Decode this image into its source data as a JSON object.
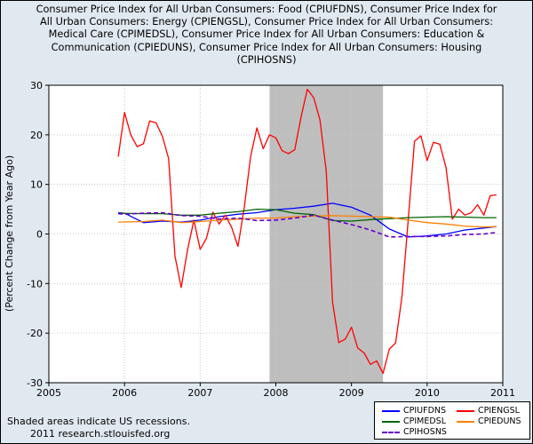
{
  "chart_data": {
    "type": "line",
    "title": "Consumer Price Index for All Urban Consumers: Food (CPIUFDNS), Consumer Price Index for All Urban Consumers: Energy (CPIENGSL), Consumer Price Index for All Urban Consumers: Medical Care (CPIMEDSL), Consumer Price Index for All Urban Consumers: Education & Communication (CPIEDUNS), Consumer Price Index for All Urban Consumers: Housing (CPIHOSNS)",
    "ylabel": "(Percent Change from Year Ago)",
    "xlim": [
      2005,
      2011
    ],
    "ylim": [
      -30,
      30
    ],
    "x_ticks": [
      "2005",
      "2006",
      "2007",
      "2008",
      "2009",
      "2010",
      "2011"
    ],
    "y_ticks": [
      "30",
      "20",
      "10",
      "0",
      "-10",
      "-20",
      "-30"
    ],
    "grid": true,
    "legend_position": "bottom-right",
    "recession": {
      "start": 2007.917,
      "end": 2009.417,
      "color": "#bebebe"
    },
    "series": [
      {
        "name": "CPIUFDNS",
        "color": "#0000ff",
        "style": "solid",
        "x": [
          2005.917,
          2006.0,
          2006.25,
          2006.5,
          2006.75,
          2007.0,
          2007.25,
          2007.5,
          2007.75,
          2008.0,
          2008.25,
          2008.5,
          2008.75,
          2009.0,
          2009.25,
          2009.5,
          2009.75,
          2010.0,
          2010.25,
          2010.5,
          2010.75,
          2010.917
        ],
        "values": [
          4.3,
          4.2,
          2.3,
          2.6,
          2.4,
          2.8,
          3.5,
          4.0,
          4.3,
          4.9,
          5.2,
          5.6,
          6.2,
          5.4,
          3.8,
          1.0,
          -0.6,
          -0.4,
          0.0,
          0.8,
          1.2,
          1.5
        ]
      },
      {
        "name": "CPIENGSL",
        "color": "#ff0000",
        "style": "solid",
        "x": [
          2005.917,
          2006.0,
          2006.083,
          2006.167,
          2006.25,
          2006.333,
          2006.417,
          2006.5,
          2006.583,
          2006.667,
          2006.75,
          2006.833,
          2006.917,
          2007.0,
          2007.083,
          2007.167,
          2007.25,
          2007.333,
          2007.417,
          2007.5,
          2007.583,
          2007.667,
          2007.75,
          2007.833,
          2007.917,
          2008.0,
          2008.083,
          2008.167,
          2008.25,
          2008.333,
          2008.417,
          2008.5,
          2008.583,
          2008.667,
          2008.75,
          2008.833,
          2008.917,
          2009.0,
          2009.083,
          2009.167,
          2009.25,
          2009.333,
          2009.417,
          2009.5,
          2009.583,
          2009.667,
          2009.75,
          2009.833,
          2009.917,
          2010.0,
          2010.083,
          2010.167,
          2010.25,
          2010.333,
          2010.417,
          2010.5,
          2010.583,
          2010.667,
          2010.75,
          2010.833,
          2010.917
        ],
        "values": [
          15.6,
          24.5,
          20.0,
          17.6,
          18.2,
          22.8,
          22.4,
          19.7,
          15.2,
          -4.5,
          -10.8,
          -3.2,
          2.8,
          -3.1,
          -0.9,
          4.4,
          2.0,
          3.8,
          1.3,
          -2.5,
          5.4,
          15.6,
          21.4,
          17.2,
          20.0,
          19.4,
          16.8,
          16.2,
          17.0,
          23.6,
          29.2,
          27.5,
          23.0,
          12.6,
          -13.8,
          -21.9,
          -21.2,
          -18.8,
          -23.0,
          -24.0,
          -26.3,
          -25.6,
          -28.1,
          -23.2,
          -22.0,
          -12.6,
          2.8,
          18.7,
          19.8,
          14.8,
          18.5,
          18.1,
          13.4,
          3.0,
          5.0,
          3.8,
          4.3,
          5.9,
          3.8,
          7.7,
          7.9
        ]
      },
      {
        "name": "CPIMEDSL",
        "color": "#006400",
        "style": "solid",
        "x": [
          2005.917,
          2006.25,
          2006.5,
          2006.75,
          2007.0,
          2007.25,
          2007.5,
          2007.75,
          2008.0,
          2008.25,
          2008.5,
          2008.75,
          2009.0,
          2009.25,
          2009.5,
          2009.75,
          2010.0,
          2010.25,
          2010.5,
          2010.75,
          2010.917
        ],
        "values": [
          4.2,
          4.1,
          4.1,
          3.8,
          3.8,
          4.2,
          4.5,
          5.0,
          4.9,
          4.2,
          3.9,
          2.7,
          2.6,
          2.9,
          3.1,
          3.3,
          3.4,
          3.5,
          3.4,
          3.3,
          3.3
        ]
      },
      {
        "name": "CPIEDUNS",
        "color": "#ff8000",
        "style": "solid",
        "x": [
          2005.917,
          2006.25,
          2006.5,
          2006.75,
          2007.0,
          2007.25,
          2007.5,
          2007.75,
          2008.0,
          2008.25,
          2008.5,
          2008.75,
          2009.0,
          2009.25,
          2009.5,
          2009.75,
          2010.0,
          2010.25,
          2010.5,
          2010.75,
          2010.917
        ],
        "values": [
          2.4,
          2.5,
          2.8,
          2.3,
          2.5,
          2.8,
          3.0,
          3.2,
          3.2,
          3.5,
          3.6,
          3.7,
          3.6,
          3.5,
          3.4,
          2.8,
          2.3,
          2.0,
          1.6,
          1.4,
          1.5
        ]
      },
      {
        "name": "CPIHOSNS",
        "color": "#6600cc",
        "style": "dashed",
        "x": [
          2005.917,
          2006.0,
          2006.25,
          2006.5,
          2006.75,
          2007.0,
          2007.25,
          2007.5,
          2007.75,
          2008.0,
          2008.25,
          2008.5,
          2008.75,
          2009.0,
          2009.25,
          2009.5,
          2009.75,
          2010.0,
          2010.25,
          2010.5,
          2010.75,
          2010.917
        ],
        "values": [
          4.1,
          4.0,
          4.2,
          4.3,
          3.7,
          3.6,
          3.0,
          3.2,
          2.7,
          2.8,
          3.2,
          3.8,
          2.8,
          1.9,
          0.8,
          -0.6,
          -0.5,
          -0.5,
          -0.4,
          -0.1,
          0.0,
          0.3
        ]
      }
    ]
  },
  "footnote": {
    "line1": "Shaded areas indicate US recessions.",
    "line2": "2011 research.stlouisfed.org"
  }
}
